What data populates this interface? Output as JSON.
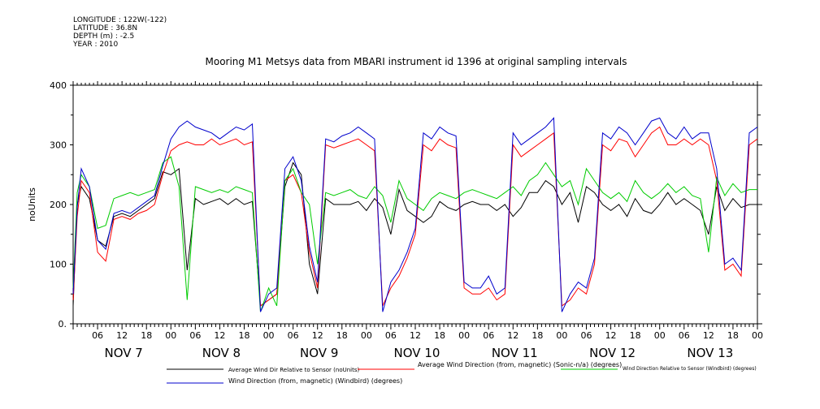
{
  "meta": {
    "longitude": "LONGITUDE : 122W(-122)",
    "latitude": "LATITUDE : 36.8N",
    "depth": "DEPTH (m) : -2.5",
    "year": "YEAR : 2010"
  },
  "chart_data": {
    "type": "line",
    "title": "Mooring M1 Metsys data from MBARI instrument id 1396 at original sampling intervals",
    "ylabel": "noUnits",
    "xlabel": "",
    "ylim": [
      0,
      400
    ],
    "yticks": [
      0,
      100,
      200,
      300,
      400
    ],
    "ytick_labels": [
      "0.",
      "100",
      "200",
      "300",
      "400"
    ],
    "xlim_hours": [
      0,
      168
    ],
    "x_hour_labels": [
      "06",
      "12",
      "18",
      "00",
      "06",
      "12",
      "18",
      "00",
      "06",
      "12",
      "18",
      "00",
      "06",
      "12",
      "18",
      "00",
      "06",
      "12",
      "18",
      "00",
      "06",
      "12",
      "18",
      "00",
      "06",
      "12",
      "18",
      "00"
    ],
    "x_day_labels": [
      "NOV  7",
      "NOV  8",
      "NOV  9",
      "NOV 10",
      "NOV 11",
      "NOV 12",
      "NOV 13"
    ],
    "grid": false,
    "legend_position": "bottom",
    "series": [
      {
        "name": "Average Wind Dir Relative to Sensor (noUnits)",
        "color": "#000000",
        "x": [
          0,
          1,
          2,
          4,
          6,
          8,
          10,
          12,
          14,
          16,
          18,
          20,
          22,
          24,
          26,
          28,
          30,
          32,
          34,
          36,
          38,
          40,
          42,
          44,
          46,
          48,
          50,
          52,
          54,
          56,
          58,
          60,
          62,
          64,
          66,
          68,
          70,
          72,
          74,
          76,
          78,
          80,
          82,
          84,
          86,
          88,
          90,
          92,
          94,
          96,
          98,
          100,
          102,
          104,
          106,
          108,
          110,
          112,
          114,
          116,
          118,
          120,
          122,
          124,
          126,
          128,
          130,
          132,
          134,
          136,
          138,
          140,
          142,
          144,
          146,
          148,
          150,
          152,
          154,
          156,
          158,
          160,
          162,
          164,
          166,
          168
        ],
        "y": [
          30,
          200,
          230,
          210,
          140,
          130,
          180,
          185,
          180,
          190,
          200,
          210,
          255,
          250,
          260,
          90,
          210,
          200,
          205,
          210,
          200,
          210,
          200,
          205,
          30,
          40,
          50,
          230,
          270,
          250,
          100,
          50,
          210,
          200,
          200,
          200,
          205,
          190,
          210,
          195,
          150,
          225,
          190,
          180,
          170,
          180,
          205,
          195,
          190,
          200,
          205,
          200,
          200,
          190,
          200,
          180,
          195,
          220,
          220,
          240,
          230,
          200,
          220,
          170,
          230,
          220,
          200,
          190,
          200,
          180,
          210,
          190,
          185,
          200,
          220,
          200,
          210,
          200,
          190,
          150,
          230,
          190,
          210,
          195,
          200,
          200
        ]
      },
      {
        "name": "Average Wind Direction (from, magnetic) (Sonic-n/a) (degrees)",
        "color": "#ff0000",
        "x": [
          0,
          1,
          2,
          4,
          6,
          8,
          10,
          12,
          14,
          16,
          18,
          20,
          22,
          24,
          26,
          28,
          30,
          32,
          34,
          36,
          38,
          40,
          42,
          44,
          46,
          48,
          50,
          52,
          54,
          56,
          58,
          60,
          62,
          64,
          66,
          68,
          70,
          72,
          74,
          76,
          78,
          80,
          82,
          84,
          86,
          88,
          90,
          92,
          94,
          96,
          98,
          100,
          102,
          104,
          106,
          108,
          110,
          112,
          114,
          116,
          118,
          120,
          122,
          124,
          126,
          128,
          130,
          132,
          134,
          136,
          138,
          140,
          142,
          144,
          146,
          148,
          150,
          152,
          154,
          156,
          158,
          160,
          162,
          164,
          166,
          168
        ],
        "y": [
          40,
          180,
          240,
          220,
          120,
          105,
          175,
          180,
          175,
          185,
          190,
          200,
          250,
          290,
          300,
          305,
          300,
          300,
          310,
          300,
          305,
          310,
          300,
          305,
          30,
          40,
          50,
          240,
          250,
          220,
          120,
          60,
          300,
          295,
          300,
          305,
          310,
          300,
          290,
          30,
          60,
          80,
          110,
          150,
          300,
          290,
          310,
          300,
          295,
          60,
          50,
          50,
          60,
          40,
          50,
          300,
          280,
          290,
          300,
          310,
          320,
          30,
          40,
          60,
          50,
          100,
          300,
          290,
          310,
          305,
          280,
          300,
          320,
          330,
          300,
          300,
          310,
          300,
          310,
          300,
          240,
          90,
          100,
          80,
          300,
          310
        ]
      },
      {
        "name": "Wind Direction Relative to Sensor (Windbird) (degrees)",
        "color": "#00cc00",
        "x": [
          0,
          1,
          2,
          4,
          6,
          8,
          10,
          12,
          14,
          16,
          18,
          20,
          22,
          24,
          26,
          28,
          30,
          32,
          34,
          36,
          38,
          40,
          42,
          44,
          46,
          48,
          50,
          52,
          54,
          56,
          58,
          60,
          62,
          64,
          66,
          68,
          70,
          72,
          74,
          76,
          78,
          80,
          82,
          84,
          86,
          88,
          90,
          92,
          94,
          96,
          98,
          100,
          102,
          104,
          106,
          108,
          110,
          112,
          114,
          116,
          118,
          120,
          122,
          124,
          126,
          128,
          130,
          132,
          134,
          136,
          138,
          140,
          142,
          144,
          146,
          148,
          150,
          152,
          154,
          156,
          158,
          160,
          162,
          164,
          166,
          168
        ],
        "y": [
          60,
          220,
          250,
          230,
          160,
          165,
          210,
          215,
          220,
          215,
          220,
          225,
          270,
          280,
          230,
          40,
          230,
          225,
          220,
          225,
          220,
          230,
          225,
          220,
          20,
          60,
          30,
          240,
          260,
          220,
          200,
          100,
          220,
          215,
          220,
          225,
          215,
          210,
          230,
          215,
          170,
          240,
          210,
          200,
          190,
          210,
          220,
          215,
          210,
          220,
          225,
          220,
          215,
          210,
          220,
          230,
          215,
          240,
          250,
          270,
          250,
          230,
          240,
          200,
          260,
          240,
          220,
          210,
          220,
          205,
          240,
          220,
          210,
          220,
          235,
          220,
          230,
          215,
          210,
          120,
          245,
          215,
          235,
          220,
          225,
          225
        ]
      },
      {
        "name": "Wind Direction (from, magnetic) (Windbird) (degrees)",
        "color": "#0000cc",
        "x": [
          0,
          1,
          2,
          4,
          6,
          8,
          10,
          12,
          14,
          16,
          18,
          20,
          22,
          24,
          26,
          28,
          30,
          32,
          34,
          36,
          38,
          40,
          42,
          44,
          46,
          48,
          50,
          52,
          54,
          56,
          58,
          60,
          62,
          64,
          66,
          68,
          70,
          72,
          74,
          76,
          78,
          80,
          82,
          84,
          86,
          88,
          90,
          92,
          94,
          96,
          98,
          100,
          102,
          104,
          106,
          108,
          110,
          112,
          114,
          116,
          118,
          120,
          122,
          124,
          126,
          128,
          130,
          132,
          134,
          136,
          138,
          140,
          142,
          144,
          146,
          148,
          150,
          152,
          154,
          156,
          158,
          160,
          162,
          164,
          166,
          168
        ],
        "y": [
          50,
          195,
          260,
          230,
          140,
          125,
          185,
          190,
          185,
          195,
          205,
          215,
          265,
          310,
          330,
          340,
          330,
          325,
          320,
          310,
          320,
          330,
          325,
          335,
          20,
          50,
          60,
          260,
          280,
          240,
          130,
          70,
          310,
          305,
          315,
          320,
          330,
          320,
          310,
          20,
          70,
          90,
          120,
          160,
          320,
          310,
          330,
          320,
          315,
          70,
          60,
          60,
          80,
          50,
          60,
          320,
          300,
          310,
          320,
          330,
          345,
          20,
          50,
          70,
          60,
          110,
          320,
          310,
          330,
          320,
          300,
          320,
          340,
          345,
          320,
          310,
          330,
          310,
          320,
          320,
          260,
          100,
          110,
          90,
          320,
          330
        ]
      }
    ]
  }
}
